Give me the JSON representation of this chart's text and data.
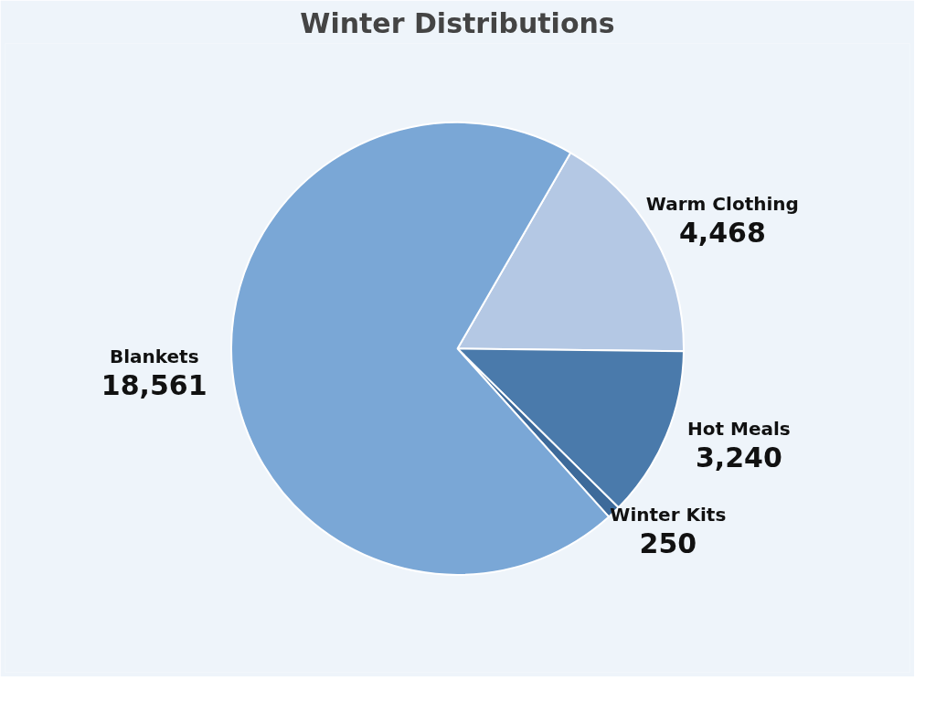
{
  "chart_data": {
    "type": "pie",
    "title": "Winter Distributions",
    "categories": [
      "Warm Clothing",
      "Hot Meals",
      "Winter Kits",
      "Blankets"
    ],
    "values": [
      4468,
      3240,
      250,
      18561
    ],
    "colors": [
      "#b4c8e4",
      "#4a7aab",
      "#3d6a9a",
      "#7aa7d6"
    ],
    "value_labels": [
      "4,468",
      "3,240",
      "250",
      "18,561"
    ],
    "legend": false
  }
}
